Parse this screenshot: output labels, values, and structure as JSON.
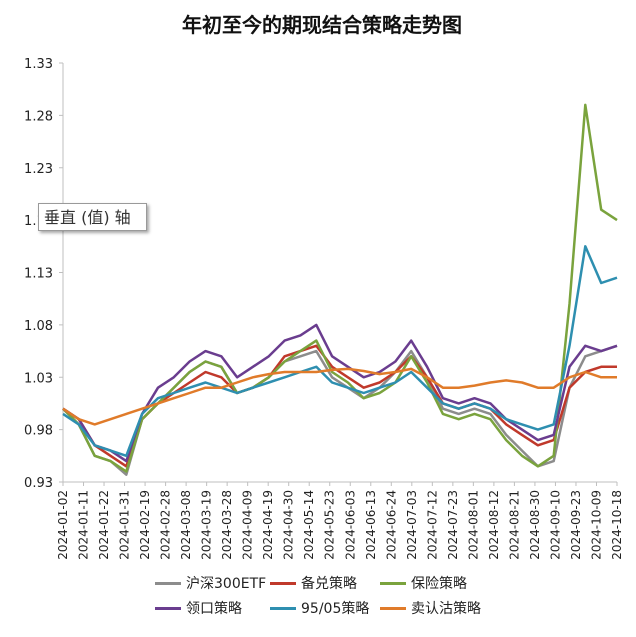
{
  "chart_data": {
    "type": "line",
    "title": "年初至今的期现结合策略走势图",
    "ylabel": "",
    "xlabel": "",
    "ylim": [
      0.93,
      1.33
    ],
    "yticks": [
      "0.93",
      "0.98",
      "1.03",
      "1.08",
      "1.13",
      "1.18",
      "1.23",
      "1.28",
      "1.33"
    ],
    "xticks": [
      "2024-01-02",
      "2024-01-11",
      "2024-01-22",
      "2024-01-31",
      "2024-02-19",
      "2024-02-28",
      "2024-03-08",
      "2024-03-19",
      "2024-03-28",
      "2024-04-09",
      "2024-04-19",
      "2024-04-30",
      "2024-05-14",
      "2024-05-23",
      "2024-06-03",
      "2024-06-13",
      "2024-06-24",
      "2024-07-03",
      "2024-07-12",
      "2024-07-23",
      "2024-08-01",
      "2024-08-12",
      "2024-08-21",
      "2024-08-30",
      "2024-09-10",
      "2024-09-23",
      "2024-10-09",
      "2024-10-18"
    ],
    "legend_position": "bottom",
    "grid": false,
    "series": [
      {
        "name": "沪深300ETF",
        "color": "#8c8c8c",
        "values": [
          1.0,
          0.985,
          0.955,
          0.95,
          0.937,
          0.99,
          1.005,
          1.02,
          1.035,
          1.045,
          1.04,
          1.015,
          1.02,
          1.03,
          1.045,
          1.05,
          1.055,
          1.03,
          1.02,
          1.01,
          1.02,
          1.035,
          1.055,
          1.03,
          1.0,
          0.995,
          1.0,
          0.995,
          0.975,
          0.96,
          0.945,
          0.95,
          1.02,
          1.05,
          1.055,
          1.06
        ]
      },
      {
        "name": "备兑策略",
        "color": "#c0392b",
        "values": [
          1.0,
          0.99,
          0.965,
          0.955,
          0.945,
          0.99,
          1.005,
          1.015,
          1.025,
          1.035,
          1.03,
          1.015,
          1.02,
          1.03,
          1.05,
          1.055,
          1.06,
          1.04,
          1.03,
          1.02,
          1.025,
          1.035,
          1.05,
          1.03,
          1.005,
          1.0,
          1.005,
          1.0,
          0.985,
          0.975,
          0.965,
          0.97,
          1.02,
          1.035,
          1.04,
          1.04
        ]
      },
      {
        "name": "保险策略",
        "color": "#7aa33d",
        "values": [
          1.0,
          0.985,
          0.955,
          0.95,
          0.94,
          0.99,
          1.005,
          1.02,
          1.035,
          1.045,
          1.04,
          1.015,
          1.02,
          1.03,
          1.045,
          1.055,
          1.065,
          1.035,
          1.025,
          1.01,
          1.015,
          1.025,
          1.05,
          1.025,
          0.995,
          0.99,
          0.995,
          0.99,
          0.97,
          0.955,
          0.945,
          0.955,
          1.1,
          1.29,
          1.19,
          1.18
        ]
      },
      {
        "name": "领口策略",
        "color": "#6a3d8f",
        "values": [
          1.0,
          0.99,
          0.965,
          0.96,
          0.95,
          0.995,
          1.02,
          1.03,
          1.045,
          1.055,
          1.05,
          1.03,
          1.04,
          1.05,
          1.065,
          1.07,
          1.08,
          1.05,
          1.04,
          1.03,
          1.035,
          1.045,
          1.065,
          1.04,
          1.01,
          1.005,
          1.01,
          1.005,
          0.99,
          0.98,
          0.97,
          0.975,
          1.04,
          1.06,
          1.055,
          1.06
        ]
      },
      {
        "name": "95/05策略",
        "color": "#2e8fb0",
        "values": [
          0.995,
          0.985,
          0.965,
          0.96,
          0.955,
          0.995,
          1.01,
          1.015,
          1.02,
          1.025,
          1.02,
          1.015,
          1.02,
          1.025,
          1.03,
          1.035,
          1.04,
          1.025,
          1.02,
          1.015,
          1.02,
          1.025,
          1.035,
          1.02,
          1.005,
          1.0,
          1.005,
          1.0,
          0.99,
          0.985,
          0.98,
          0.985,
          1.06,
          1.155,
          1.12,
          1.125
        ]
      },
      {
        "name": "卖认沽策略",
        "color": "#e07b2a",
        "values": [
          1.0,
          0.99,
          0.985,
          0.99,
          0.995,
          1.0,
          1.005,
          1.01,
          1.015,
          1.02,
          1.02,
          1.025,
          1.03,
          1.033,
          1.035,
          1.035,
          1.035,
          1.037,
          1.038,
          1.036,
          1.033,
          1.035,
          1.038,
          1.03,
          1.02,
          1.02,
          1.022,
          1.025,
          1.027,
          1.025,
          1.02,
          1.02,
          1.03,
          1.035,
          1.03,
          1.03
        ]
      }
    ]
  },
  "tooltip": {
    "text": "垂直 (值) 轴"
  }
}
